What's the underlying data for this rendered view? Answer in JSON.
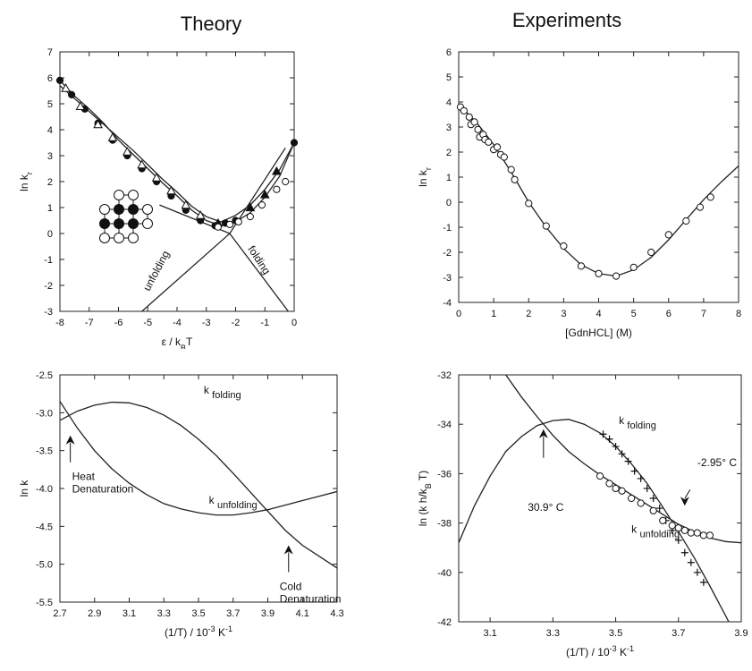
{
  "headings": {
    "theory": "Theory",
    "experiments": "Experiments"
  },
  "chart_data": [
    {
      "id": "tl",
      "type": "scatter",
      "xlabel": "ε / k_B T",
      "ylabel": "ln k_r",
      "xlim": [
        -8,
        0
      ],
      "ylim": [
        -3,
        7
      ],
      "xticks": [
        -8,
        -7,
        -6,
        -5,
        -4,
        -3,
        -2,
        -1,
        0
      ],
      "yticks": [
        -3,
        -2,
        -1,
        0,
        1,
        2,
        3,
        4,
        5,
        6,
        7
      ],
      "lines": [
        {
          "name": "unfolding",
          "points": [
            [
              -5.2,
              -3
            ],
            [
              -2.2,
              0
            ],
            [
              -0.3,
              3.3
            ]
          ]
        },
        {
          "name": "folding",
          "points": [
            [
              -4.6,
              1.1
            ],
            [
              -2.2,
              0
            ],
            [
              -0.2,
              -3
            ]
          ]
        },
        {
          "name": "",
          "points": [
            [
              -8,
              5.9
            ],
            [
              -7.5,
              5.3
            ],
            [
              -7,
              4.8
            ],
            [
              -6.5,
              4.25
            ],
            [
              -6,
              3.6
            ],
            [
              -5.5,
              3.05
            ],
            [
              -5,
              2.5
            ],
            [
              -4.5,
              1.95
            ],
            [
              -4,
              1.45
            ],
            [
              -3.5,
              0.9
            ],
            [
              -3,
              0.5
            ],
            [
              -2.5,
              0.3
            ],
            [
              -2,
              0.45
            ],
            [
              -1.5,
              0.8
            ],
            [
              -1,
              1.4
            ],
            [
              -0.5,
              2.2
            ],
            [
              0,
              3.5
            ]
          ]
        },
        {
          "name": "",
          "points": [
            [
              -8,
              5.7
            ],
            [
              -7.5,
              5.2
            ],
            [
              -7,
              4.7
            ],
            [
              -6.5,
              4.2
            ],
            [
              -6,
              3.7
            ],
            [
              -5.5,
              3.2
            ],
            [
              -5,
              2.65
            ],
            [
              -4.5,
              2.1
            ],
            [
              -4,
              1.6
            ],
            [
              -3.5,
              1.05
            ],
            [
              -3,
              0.65
            ],
            [
              -2.5,
              0.45
            ],
            [
              -2,
              0.7
            ],
            [
              -1.5,
              1.1
            ],
            [
              -1,
              1.7
            ],
            [
              -0.5,
              2.45
            ],
            [
              0,
              3.5
            ]
          ]
        }
      ],
      "series": [
        {
          "name": "",
          "marker": "filled-circle",
          "x": [
            -8,
            -7.6,
            -7.15,
            -6.7,
            -6.2,
            -5.7,
            -5.2,
            -4.7,
            -4.2,
            -3.7,
            -3.2,
            -2.7,
            -2.35,
            -2.0,
            0
          ],
          "y": [
            5.9,
            5.35,
            4.8,
            4.25,
            3.6,
            3.0,
            2.5,
            2.0,
            1.45,
            0.9,
            0.5,
            0.3,
            0.4,
            0.5,
            3.5
          ]
        },
        {
          "name": "",
          "marker": "open-triangle",
          "x": [
            -7.8,
            -7.3,
            -6.7,
            -6.2,
            -5.7,
            -5.2,
            -4.7,
            -4.2,
            -3.7,
            -3.2
          ],
          "y": [
            5.6,
            4.9,
            4.2,
            3.7,
            3.15,
            2.65,
            2.15,
            1.65,
            1.1,
            0.7
          ]
        },
        {
          "name": "",
          "marker": "filled-triangle",
          "x": [
            -2.6,
            -1.5,
            -1.0,
            -0.6
          ],
          "y": [
            0.4,
            1.0,
            1.5,
            2.4
          ]
        },
        {
          "name": "",
          "marker": "open-circle",
          "x": [
            -2.6,
            -2.2,
            -1.9,
            -1.5,
            -1.1,
            -0.6,
            -0.3
          ],
          "y": [
            0.25,
            0.35,
            0.45,
            0.65,
            1.1,
            1.7,
            2.0
          ]
        }
      ],
      "annotations": [
        {
          "text": "unfolding",
          "x": -4.6,
          "y": -1.5,
          "rotate": -62
        },
        {
          "text": "folding",
          "x": -1.3,
          "y": -1.1,
          "rotate": 57
        }
      ],
      "lattice": {
        "rows": [
          [
            null,
            0,
            0,
            null
          ],
          [
            0,
            1,
            1,
            0
          ],
          [
            1,
            1,
            1,
            0
          ],
          [
            0,
            0,
            0,
            null
          ]
        ]
      }
    },
    {
      "id": "tr",
      "type": "scatter",
      "xlabel": "[GdnHCL] (M)",
      "ylabel": "ln k_r",
      "xlim": [
        0,
        8
      ],
      "ylim": [
        -4,
        6
      ],
      "xticks": [
        0,
        1,
        2,
        3,
        4,
        5,
        6,
        7,
        8
      ],
      "yticks": [
        -4,
        -3,
        -2,
        -1,
        0,
        1,
        2,
        3,
        4,
        5,
        6
      ],
      "lines": [
        {
          "name": "",
          "points": [
            [
              0,
              3.9
            ],
            [
              0.5,
              3.2
            ],
            [
              1,
              2.3
            ],
            [
              1.5,
              1.2
            ],
            [
              2,
              0.0
            ],
            [
              2.5,
              -1.0
            ],
            [
              3,
              -1.85
            ],
            [
              3.5,
              -2.5
            ],
            [
              4,
              -2.85
            ],
            [
              4.5,
              -2.95
            ],
            [
              5,
              -2.7
            ],
            [
              5.5,
              -2.2
            ],
            [
              6,
              -1.5
            ],
            [
              6.5,
              -0.7
            ],
            [
              7,
              0.1
            ],
            [
              7.5,
              0.8
            ],
            [
              8,
              1.45
            ]
          ]
        }
      ],
      "series": [
        {
          "name": "",
          "marker": "open-circle",
          "x": [
            0.05,
            0.15,
            0.3,
            0.35,
            0.45,
            0.55,
            0.6,
            0.7,
            0.75,
            0.85,
            1.0,
            1.1,
            1.2,
            1.3,
            1.5,
            1.6,
            2.0,
            2.5,
            3.0,
            3.5,
            4.0,
            4.5,
            5.0,
            5.5,
            6.0,
            6.5,
            6.9,
            7.2
          ],
          "y": [
            3.8,
            3.65,
            3.4,
            3.1,
            3.2,
            2.9,
            2.6,
            2.7,
            2.5,
            2.4,
            2.1,
            2.2,
            1.9,
            1.8,
            1.3,
            0.9,
            -0.05,
            -0.95,
            -1.75,
            -2.55,
            -2.85,
            -2.95,
            -2.6,
            -2.0,
            -1.3,
            -0.75,
            -0.2,
            0.2
          ]
        }
      ]
    },
    {
      "id": "bl",
      "type": "line",
      "xlabel": "(1/T) / 10^-3 K^-1",
      "ylabel": "ln k",
      "xlim": [
        2.7,
        4.3
      ],
      "ylim": [
        -5.5,
        -2.5
      ],
      "xticks": [
        2.7,
        2.9,
        3.1,
        3.3,
        3.5,
        3.7,
        3.9,
        4.1,
        4.3
      ],
      "yticks": [
        -5.5,
        -5.0,
        -4.5,
        -4.0,
        -3.5,
        -3.0,
        -2.5
      ],
      "ytick_labels": [
        "-5.5",
        "-5.0",
        "-4.5",
        "-4.0",
        "-3.5",
        "-3.0",
        "-2.5"
      ],
      "lines": [
        {
          "name": "k_folding",
          "points": [
            [
              2.7,
              -3.1
            ],
            [
              2.8,
              -2.98
            ],
            [
              2.9,
              -2.9
            ],
            [
              3.0,
              -2.86
            ],
            [
              3.1,
              -2.87
            ],
            [
              3.2,
              -2.93
            ],
            [
              3.3,
              -3.03
            ],
            [
              3.4,
              -3.17
            ],
            [
              3.5,
              -3.35
            ],
            [
              3.6,
              -3.56
            ],
            [
              3.7,
              -3.8
            ],
            [
              3.8,
              -4.05
            ],
            [
              3.9,
              -4.3
            ],
            [
              4.0,
              -4.55
            ],
            [
              4.1,
              -4.75
            ],
            [
              4.2,
              -4.9
            ],
            [
              4.3,
              -5.05
            ]
          ]
        },
        {
          "name": "k_unfolding",
          "points": [
            [
              2.7,
              -2.85
            ],
            [
              2.8,
              -3.2
            ],
            [
              2.9,
              -3.5
            ],
            [
              3.0,
              -3.74
            ],
            [
              3.1,
              -3.93
            ],
            [
              3.2,
              -4.08
            ],
            [
              3.3,
              -4.2
            ],
            [
              3.4,
              -4.27
            ],
            [
              3.5,
              -4.32
            ],
            [
              3.6,
              -4.35
            ],
            [
              3.7,
              -4.35
            ],
            [
              3.8,
              -4.32
            ],
            [
              3.9,
              -4.28
            ],
            [
              4.0,
              -4.22
            ],
            [
              4.1,
              -4.16
            ],
            [
              4.2,
              -4.1
            ],
            [
              4.3,
              -4.04
            ]
          ]
        }
      ],
      "annotations": [
        {
          "text": "Heat",
          "text2": "Denaturation",
          "arrow_x": 2.76,
          "arrow_y": -3.3
        },
        {
          "text": "Cold",
          "text2": "Denaturation",
          "arrow_x": 4.02,
          "arrow_y": -4.75
        }
      ],
      "line_labels": [
        {
          "main": "k",
          "sub": "folding",
          "x": 3.53,
          "y": -2.75
        },
        {
          "main": "k",
          "sub": "unfolding",
          "x": 3.56,
          "y": -4.2
        }
      ]
    },
    {
      "id": "br",
      "type": "scatter",
      "xlabel": "(1/T) / 10^-3 K^-1",
      "ylabel": "ln (k h/k_B T)",
      "xlim": [
        3.0,
        3.9
      ],
      "ylim": [
        -42,
        -32
      ],
      "xticks": [
        3.1,
        3.3,
        3.5,
        3.7,
        3.9
      ],
      "yticks": [
        -42,
        -40,
        -38,
        -36,
        -34,
        -32
      ],
      "lines": [
        {
          "name": "k_folding",
          "points": [
            [
              3.0,
              -38.8
            ],
            [
              3.05,
              -37.3
            ],
            [
              3.1,
              -36.1
            ],
            [
              3.15,
              -35.1
            ],
            [
              3.2,
              -34.5
            ],
            [
              3.25,
              -34.05
            ],
            [
              3.3,
              -33.85
            ],
            [
              3.35,
              -33.8
            ],
            [
              3.4,
              -34.0
            ],
            [
              3.45,
              -34.35
            ],
            [
              3.5,
              -34.9
            ],
            [
              3.55,
              -35.6
            ],
            [
              3.6,
              -36.4
            ],
            [
              3.65,
              -37.35
            ],
            [
              3.7,
              -38.35
            ],
            [
              3.75,
              -39.4
            ],
            [
              3.8,
              -40.55
            ],
            [
              3.85,
              -41.75
            ],
            [
              3.86,
              -42
            ]
          ]
        },
        {
          "name": "k_unfolding",
          "points": [
            [
              3.15,
              -32
            ],
            [
              3.2,
              -32.9
            ],
            [
              3.25,
              -33.7
            ],
            [
              3.3,
              -34.45
            ],
            [
              3.35,
              -35.1
            ],
            [
              3.4,
              -35.6
            ],
            [
              3.45,
              -36.05
            ],
            [
              3.5,
              -36.45
            ],
            [
              3.55,
              -36.85
            ],
            [
              3.6,
              -37.25
            ],
            [
              3.65,
              -37.65
            ],
            [
              3.7,
              -38.05
            ],
            [
              3.75,
              -38.35
            ],
            [
              3.8,
              -38.6
            ],
            [
              3.85,
              -38.75
            ],
            [
              3.9,
              -38.8
            ]
          ]
        }
      ],
      "series": [
        {
          "name": "k_folding",
          "marker": "plus",
          "x": [
            3.46,
            3.48,
            3.5,
            3.52,
            3.54,
            3.56,
            3.58,
            3.6,
            3.62,
            3.64,
            3.66,
            3.68,
            3.7,
            3.72,
            3.74,
            3.76,
            3.78
          ],
          "y": [
            -34.4,
            -34.6,
            -34.9,
            -35.2,
            -35.5,
            -35.9,
            -36.2,
            -36.6,
            -37.0,
            -37.4,
            -37.9,
            -38.3,
            -38.7,
            -39.2,
            -39.6,
            -40.0,
            -40.4
          ]
        },
        {
          "name": "k_unfolding",
          "marker": "open-circle",
          "x": [
            3.45,
            3.48,
            3.5,
            3.52,
            3.55,
            3.58,
            3.62,
            3.65,
            3.68,
            3.7,
            3.72,
            3.74,
            3.76,
            3.78,
            3.8
          ],
          "y": [
            -36.1,
            -36.4,
            -36.6,
            -36.7,
            -37.0,
            -37.2,
            -37.5,
            -37.9,
            -38.1,
            -38.2,
            -38.3,
            -38.4,
            -38.4,
            -38.5,
            -38.5
          ]
        }
      ],
      "annotations": [
        {
          "text": "30.9° C",
          "arrow_x": 3.27,
          "arrow_y": -34.2,
          "label_x": 3.22,
          "label_y": -37.5
        },
        {
          "text": "-2.95° C",
          "arrow_x": 3.72,
          "arrow_y": -37.3,
          "label_x": 3.76,
          "label_y": -35.7
        }
      ],
      "line_labels": [
        {
          "main": "k",
          "sub": "folding",
          "x": 3.51,
          "y": -34.0
        },
        {
          "main": "k",
          "sub": "unfolding",
          "x": 3.55,
          "y": -38.4
        }
      ]
    }
  ]
}
